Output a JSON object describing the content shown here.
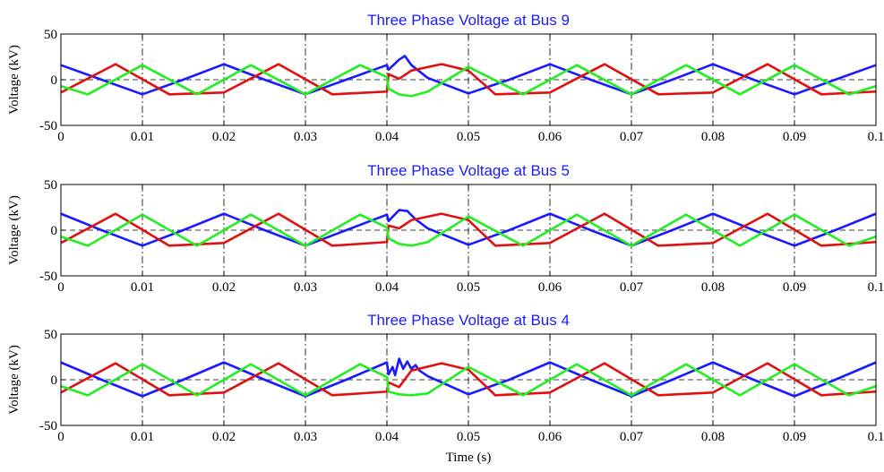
{
  "chart_data": [
    {
      "type": "line",
      "title": "Three Phase Voltage at Bus 9",
      "ylabel": "Voltage (kV)",
      "xlabel": "",
      "xlim": [
        0,
        0.1
      ],
      "ylim": [
        -50,
        50
      ],
      "xticks": [
        "0",
        "0.01",
        "0.02",
        "0.03",
        "0.04",
        "0.05",
        "0.06",
        "0.07",
        "0.08",
        "0.09",
        "0.1"
      ],
      "yticks": [
        "-50",
        "0",
        "50"
      ],
      "grid": true,
      "series": [
        {
          "color": "#1a1aff",
          "x": [
            0,
            0.005,
            0.01,
            0.015,
            0.02,
            0.025,
            0.03,
            0.035,
            0.04,
            0.0402,
            0.0415,
            0.0422,
            0.043,
            0.045,
            0.05,
            0.055,
            0.06,
            0.065,
            0.07,
            0.075,
            0.08,
            0.085,
            0.09,
            0.095,
            0.1
          ],
          "y": [
            16,
            0,
            -16,
            0,
            17,
            0,
            -16,
            0,
            16,
            11,
            22,
            26,
            16,
            2,
            -15,
            0,
            17,
            0,
            -16,
            0,
            17,
            0,
            -16,
            0,
            16
          ]
        },
        {
          "color": "#e01010",
          "x": [
            0,
            0.0067,
            0.0133,
            0.02,
            0.0267,
            0.0333,
            0.04,
            0.0402,
            0.0415,
            0.043,
            0.0467,
            0.05,
            0.0533,
            0.06,
            0.0667,
            0.0733,
            0.08,
            0.0867,
            0.0933,
            0.1
          ],
          "y": [
            -14,
            17,
            -16,
            -14,
            17,
            -16,
            -13,
            6,
            1,
            10,
            17,
            10,
            -16,
            -14,
            17,
            -16,
            -14,
            17,
            -16,
            -13
          ]
        },
        {
          "color": "#22ee22",
          "x": [
            0,
            0.0033,
            0.01,
            0.0167,
            0.0233,
            0.03,
            0.0367,
            0.04,
            0.0402,
            0.0415,
            0.043,
            0.045,
            0.05,
            0.0567,
            0.0633,
            0.07,
            0.0767,
            0.0833,
            0.09,
            0.0967,
            0.1
          ],
          "y": [
            -7,
            -16,
            16,
            -16,
            16,
            -16,
            16,
            3,
            -10,
            -16,
            -18,
            -13,
            14,
            -16,
            16,
            -16,
            16,
            -16,
            16,
            -16,
            -7
          ]
        }
      ]
    },
    {
      "type": "line",
      "title": "Three Phase Voltage at Bus 5",
      "ylabel": "Voltage (kV)",
      "xlabel": "",
      "xlim": [
        0,
        0.1
      ],
      "ylim": [
        -50,
        50
      ],
      "xticks": [
        "0",
        "0.01",
        "0.02",
        "0.03",
        "0.04",
        "0.05",
        "0.06",
        "0.07",
        "0.08",
        "0.09",
        "0.1"
      ],
      "yticks": [
        "-50",
        "0",
        "50"
      ],
      "grid": true,
      "series": [
        {
          "color": "#1a1aff",
          "x": [
            0,
            0.005,
            0.01,
            0.015,
            0.02,
            0.025,
            0.03,
            0.035,
            0.04,
            0.0402,
            0.0415,
            0.0425,
            0.0435,
            0.045,
            0.05,
            0.055,
            0.06,
            0.065,
            0.07,
            0.075,
            0.08,
            0.085,
            0.09,
            0.095,
            0.1
          ],
          "y": [
            18,
            0,
            -17,
            0,
            18,
            0,
            -17,
            0,
            17,
            10,
            22,
            21,
            12,
            2,
            -16,
            0,
            18,
            0,
            -17,
            0,
            18,
            0,
            -17,
            0,
            18
          ]
        },
        {
          "color": "#e01010",
          "x": [
            0,
            0.0067,
            0.0133,
            0.02,
            0.0267,
            0.0333,
            0.04,
            0.0402,
            0.0415,
            0.043,
            0.0467,
            0.05,
            0.0533,
            0.06,
            0.0667,
            0.0733,
            0.08,
            0.0867,
            0.0933,
            0.1
          ],
          "y": [
            -14,
            18,
            -17,
            -14,
            18,
            -17,
            -13,
            5,
            2,
            11,
            18,
            11,
            -17,
            -14,
            18,
            -17,
            -14,
            18,
            -17,
            -13
          ]
        },
        {
          "color": "#22ee22",
          "x": [
            0,
            0.0033,
            0.01,
            0.0167,
            0.0233,
            0.03,
            0.0367,
            0.04,
            0.0402,
            0.0415,
            0.043,
            0.045,
            0.05,
            0.0567,
            0.0633,
            0.07,
            0.0767,
            0.0833,
            0.09,
            0.0967,
            0.1
          ],
          "y": [
            -7,
            -17,
            17,
            -17,
            17,
            -17,
            17,
            3,
            -9,
            -15,
            -17,
            -13,
            15,
            -17,
            17,
            -17,
            17,
            -17,
            17,
            -17,
            -7
          ]
        }
      ]
    },
    {
      "type": "line",
      "title": "Three Phase Voltage at Bus 4",
      "ylabel": "Voltage (kV)",
      "xlabel": "Time (s)",
      "xlim": [
        0,
        0.1
      ],
      "ylim": [
        -50,
        50
      ],
      "xticks": [
        "0",
        "0.01",
        "0.02",
        "0.03",
        "0.04",
        "0.05",
        "0.06",
        "0.07",
        "0.08",
        "0.09",
        "0.1"
      ],
      "yticks": [
        "-50",
        "0",
        "50"
      ],
      "grid": true,
      "series": [
        {
          "color": "#1a1aff",
          "x": [
            0,
            0.005,
            0.01,
            0.015,
            0.02,
            0.025,
            0.03,
            0.035,
            0.04,
            0.0402,
            0.0407,
            0.041,
            0.0415,
            0.042,
            0.0425,
            0.043,
            0.0435,
            0.044,
            0.045,
            0.05,
            0.055,
            0.06,
            0.065,
            0.07,
            0.075,
            0.08,
            0.085,
            0.09,
            0.095,
            0.1
          ],
          "y": [
            19,
            0,
            -18,
            0,
            19,
            0,
            -18,
            0,
            19,
            6,
            14,
            5,
            23,
            12,
            20,
            12,
            16,
            10,
            4,
            -16,
            0,
            19,
            0,
            -18,
            0,
            19,
            0,
            -18,
            0,
            19
          ]
        },
        {
          "color": "#e01010",
          "x": [
            0,
            0.0067,
            0.0133,
            0.02,
            0.0267,
            0.0333,
            0.04,
            0.0402,
            0.0415,
            0.043,
            0.0467,
            0.05,
            0.0533,
            0.06,
            0.0667,
            0.0733,
            0.08,
            0.0867,
            0.0933,
            0.1
          ],
          "y": [
            -14,
            18,
            -17,
            -14,
            18,
            -17,
            -13,
            -3,
            -8,
            10,
            18,
            11,
            -17,
            -14,
            18,
            -17,
            -14,
            18,
            -17,
            -13
          ]
        },
        {
          "color": "#22ee22",
          "x": [
            0,
            0.0033,
            0.01,
            0.0167,
            0.0233,
            0.03,
            0.0367,
            0.04,
            0.0402,
            0.0415,
            0.043,
            0.045,
            0.05,
            0.0567,
            0.0633,
            0.07,
            0.0767,
            0.0833,
            0.09,
            0.0967,
            0.1
          ],
          "y": [
            -7,
            -17,
            17,
            -17,
            17,
            -17,
            17,
            3,
            -13,
            -16,
            -17,
            -15,
            14,
            -17,
            17,
            -17,
            17,
            -17,
            17,
            -17,
            -7
          ]
        }
      ]
    }
  ]
}
